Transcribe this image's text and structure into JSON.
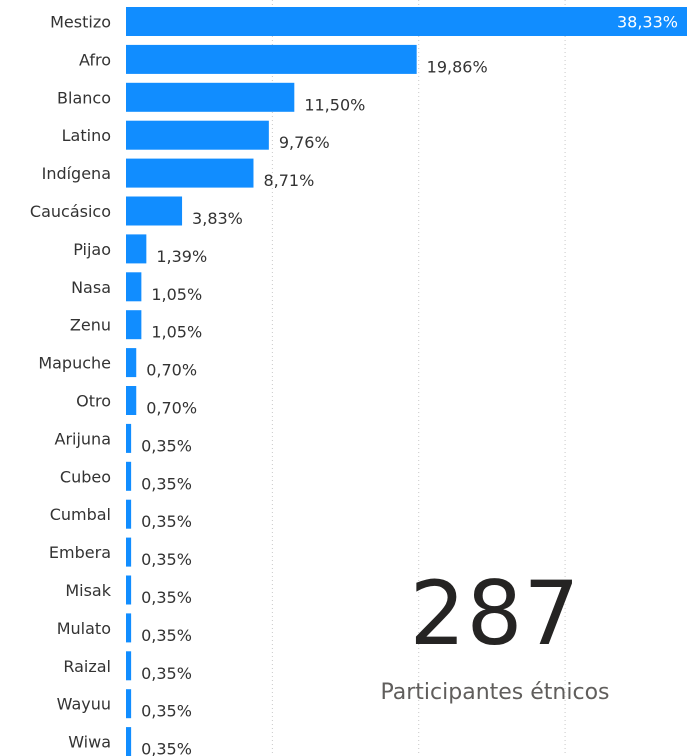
{
  "chart_data": {
    "type": "bar",
    "orientation": "horizontal",
    "categories": [
      "Mestizo",
      "Afro",
      "Blanco",
      "Latino",
      "Indígena",
      "Caucásico",
      "Pijao",
      "Nasa",
      "Zenu",
      "Mapuche",
      "Otro",
      "Arijuna",
      "Cubeo",
      "Cumbal",
      "Embera",
      "Misak",
      "Mulato",
      "Raizal",
      "Wayuu",
      "Wiwa"
    ],
    "values": [
      38.33,
      19.86,
      11.5,
      9.76,
      8.71,
      3.83,
      1.39,
      1.05,
      1.05,
      0.7,
      0.7,
      0.35,
      0.35,
      0.35,
      0.35,
      0.35,
      0.35,
      0.35,
      0.35,
      0.35
    ],
    "value_labels": [
      "38,33%",
      "19,86%",
      "11,50%",
      "9,76%",
      "8,71%",
      "3,83%",
      "1,39%",
      "1,05%",
      "1,05%",
      "0,70%",
      "0,70%",
      "0,35%",
      "0,35%",
      "0,35%",
      "0,35%",
      "0,35%",
      "0,35%",
      "0,35%",
      "0,35%",
      "0,35%"
    ],
    "xlim": [
      0,
      38.33
    ],
    "grid": true,
    "bar_color": "#118dff"
  },
  "card": {
    "value": "287",
    "label": "Participantes étnicos"
  }
}
